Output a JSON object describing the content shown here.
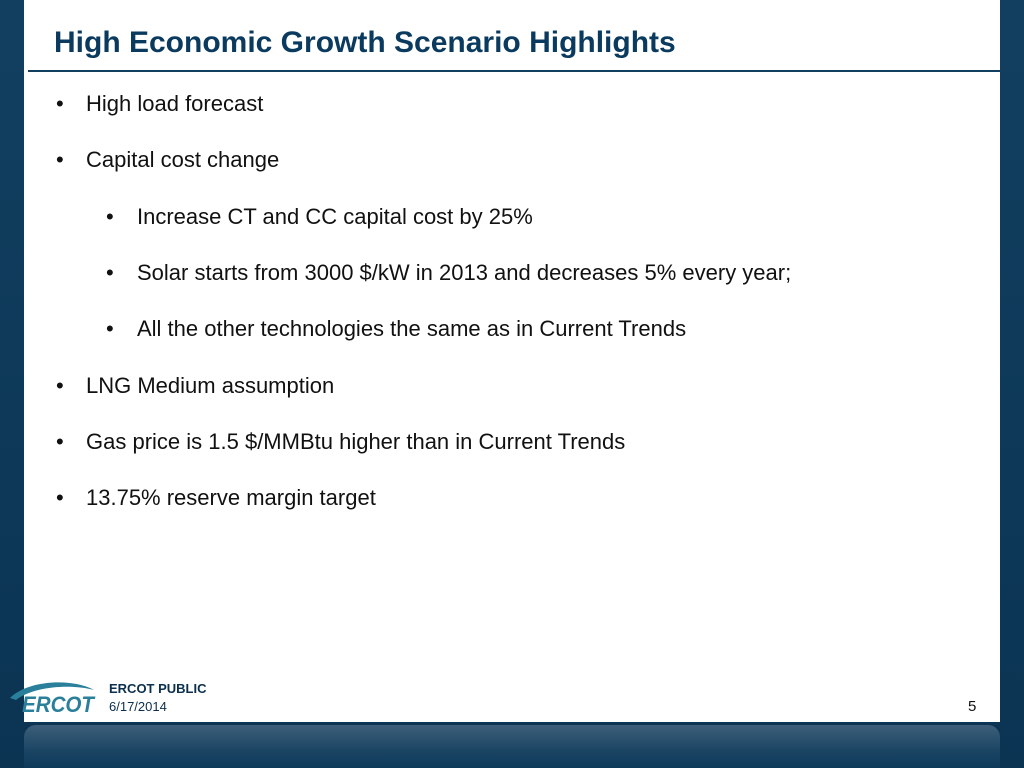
{
  "slide": {
    "title": "High Economic Growth Scenario Highlights",
    "bullets": [
      {
        "level": 1,
        "text": "High load forecast"
      },
      {
        "level": 1,
        "text": "Capital cost change"
      },
      {
        "level": 2,
        "text": "Increase CT and CC capital cost by 25%"
      },
      {
        "level": 2,
        "text": "Solar starts from 3000 $/kW in 2013 and decreases 5% every year;"
      },
      {
        "level": 2,
        "text": "All the other technologies the same as in Current Trends"
      },
      {
        "level": 1,
        "text": "LNG Medium assumption"
      },
      {
        "level": 1,
        "text": "Gas price is 1.5 $/MMBtu higher than in Current Trends"
      },
      {
        "level": 1,
        "text": "13.75% reserve margin target"
      }
    ],
    "bullet_glyph": "•"
  },
  "footer": {
    "logo_text": "ERCOT",
    "classification": "ERCOT PUBLIC",
    "date": "6/17/2014",
    "page_number": "5"
  },
  "colors": {
    "frame": "#0e3a5a",
    "title": "#0b3a5f",
    "logo": "#2a7f9a"
  }
}
